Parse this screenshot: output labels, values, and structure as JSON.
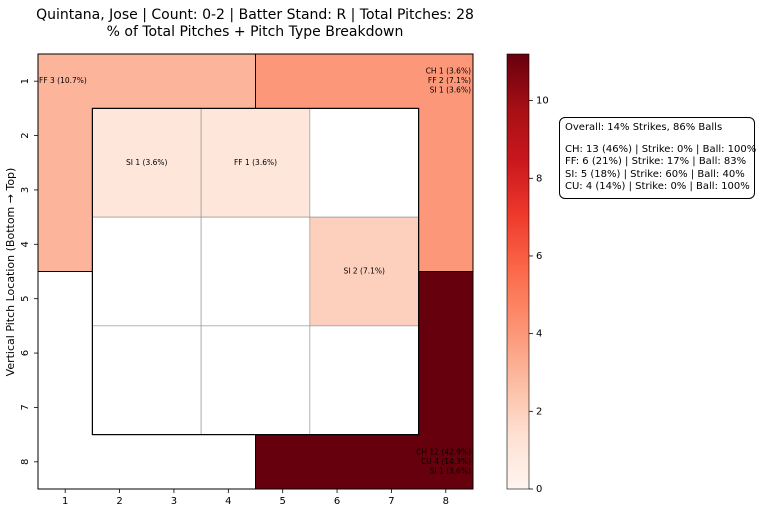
{
  "chart_data": {
    "type": "heatmap",
    "title": "Quintana, Jose | Count: 0-2 | Batter Stand: R | Total Pitches: 28",
    "subtitle": "% of Total Pitches + Pitch Type Breakdown",
    "xlabel": "",
    "ylabel": "Vertical Pitch Location (Bottom → Top)",
    "x_ticks": [
      "1",
      "2",
      "3",
      "4",
      "5",
      "6",
      "7",
      "8"
    ],
    "y_ticks": [
      "1",
      "2",
      "3",
      "4",
      "5",
      "6",
      "7",
      "8"
    ],
    "colorbar": {
      "colormap": "Reds",
      "range": [
        0,
        11.2
      ],
      "ticks": [
        "0",
        "2",
        "4",
        "6",
        "8",
        "10"
      ]
    },
    "zones": [
      {
        "label": "FF 3 (10.7%)",
        "value": 3
      },
      {
        "label": "CH 1 (3.6%)\nFF 2 (7.1%)\nSI 1 (3.6%)",
        "value": 4
      },
      {
        "label": "",
        "value": 0
      },
      {
        "label": "CH 12 (42.9%)\nCU 4 (14.3%)\nSI 1 (3.6%)",
        "value": 17
      }
    ],
    "cells": [
      {
        "label": "SI 1 (3.6%)",
        "value": 1
      },
      {
        "label": "FF 1 (3.6%)",
        "value": 1
      },
      {
        "label": "",
        "value": 0
      },
      {
        "label": "",
        "value": 0
      },
      {
        "label": "",
        "value": 0
      },
      {
        "label": "SI 2 (7.1%)",
        "value": 2
      },
      {
        "label": "",
        "value": 0
      },
      {
        "label": "",
        "value": 0
      },
      {
        "label": "",
        "value": 0
      }
    ],
    "summary": {
      "overall": "Overall: 14% Strikes, 86% Balls",
      "lines": [
        "CH: 13 (46%) | Strike: 0% | Ball: 100%",
        "FF: 6 (21%) | Strike: 17% | Ball: 83%",
        "SI: 5 (18%) | Strike: 60% | Ball: 40%",
        "CU: 4 (14%) | Strike: 0% | Ball: 100%"
      ]
    }
  }
}
